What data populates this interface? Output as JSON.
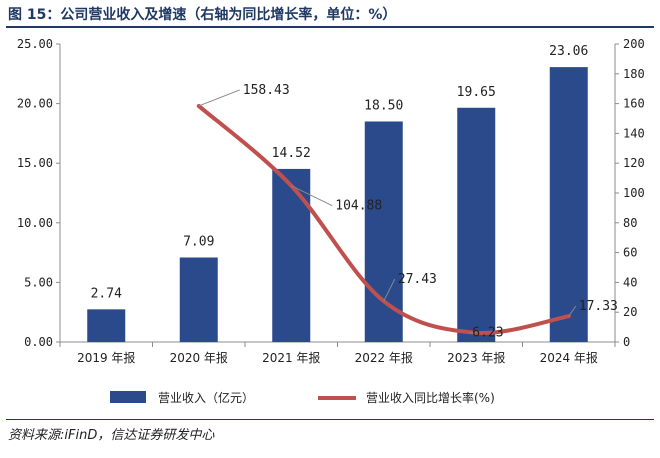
{
  "figure": {
    "title": "图 15：公司营业收入及增速（右轴为同比增长率，单位：%）",
    "source": "资料来源:iFinD，信达证券研发中心"
  },
  "colors": {
    "bar": "#2a4a8c",
    "line": "#c0504d",
    "axis": "#8c8c8c",
    "title": "#1f3864"
  },
  "chart_data": {
    "type": "bar",
    "categories": [
      "2019 年报",
      "2020 年报",
      "2021 年报",
      "2022 年报",
      "2023 年报",
      "2024 年报"
    ],
    "series": [
      {
        "name": "营业收入（亿元）",
        "type": "bar",
        "axis": "left",
        "values": [
          2.74,
          7.09,
          14.52,
          18.5,
          19.65,
          23.06
        ],
        "labels": [
          "2.74",
          "7.09",
          "14.52",
          "18.50",
          "19.65",
          "23.06"
        ]
      },
      {
        "name": "营业收入同比增长率(%)",
        "type": "line",
        "axis": "right",
        "smooth": true,
        "values": [
          null,
          158.43,
          104.88,
          27.43,
          6.23,
          17.33
        ],
        "labels": [
          "",
          "158.43",
          "104.88",
          "27.43",
          "6.23",
          "17.33"
        ]
      }
    ],
    "y_left": {
      "min": 0,
      "max": 25,
      "step": 5,
      "ticks": [
        "0.00",
        "5.00",
        "10.00",
        "15.00",
        "20.00",
        "25.00"
      ]
    },
    "y_right": {
      "min": 0,
      "max": 200,
      "step": 20,
      "ticks": [
        "0",
        "20",
        "40",
        "60",
        "80",
        "100",
        "120",
        "140",
        "160",
        "180",
        "200"
      ]
    },
    "legend": {
      "position": "bottom"
    },
    "grid": false
  }
}
